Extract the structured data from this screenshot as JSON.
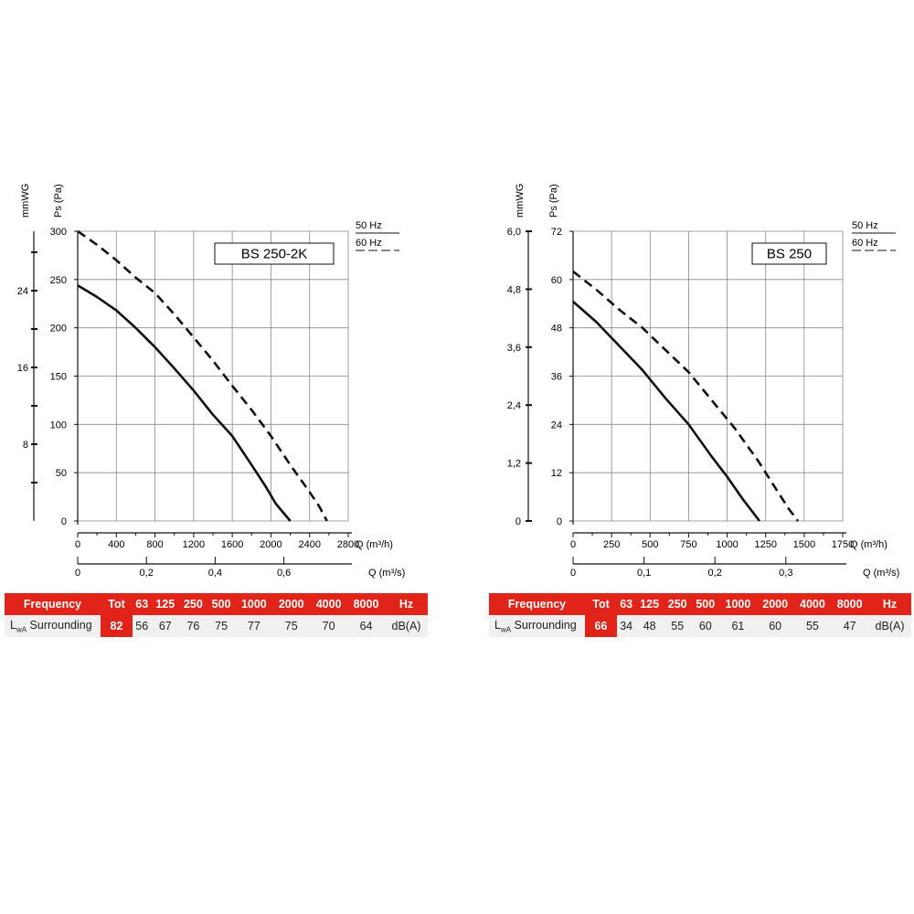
{
  "chart_data": [
    {
      "type": "line",
      "title": "BS 250-2K",
      "ylabel_primary": "Ps (Pa)",
      "ylabel_secondary": "mmWG",
      "xlabel_primary": "Q (m³/h)",
      "xlabel_secondary": "Q (m³/s)",
      "xlim": [
        0,
        2800
      ],
      "ylim": [
        0,
        300
      ],
      "x_ticks": [
        0,
        400,
        800,
        1200,
        1600,
        2000,
        2400,
        2800
      ],
      "y_ticks": [
        0,
        50,
        100,
        150,
        200,
        250,
        300
      ],
      "y2_ticks": [
        "8",
        "16",
        "24"
      ],
      "y2_values": [
        8,
        16,
        24
      ],
      "x2_ticks": [
        "0",
        "0,2",
        "0,4",
        "0,6"
      ],
      "x2_values": [
        0,
        0.2,
        0.4,
        0.6
      ],
      "grid": true,
      "legend_placement": "top-right",
      "series": [
        {
          "name": "50 Hz",
          "style": "solid",
          "x": [
            0,
            200,
            400,
            600,
            800,
            1000,
            1200,
            1400,
            1600,
            1800,
            1950,
            2050,
            2200
          ],
          "y": [
            244,
            232,
            218,
            200,
            180,
            158,
            135,
            110,
            88,
            58,
            35,
            18,
            0
          ]
        },
        {
          "name": "60 Hz",
          "style": "dashed",
          "x": [
            0,
            200,
            400,
            600,
            800,
            1000,
            1200,
            1400,
            1600,
            1800,
            2000,
            2200,
            2400,
            2500,
            2580
          ],
          "y": [
            300,
            286,
            270,
            252,
            236,
            214,
            190,
            166,
            140,
            115,
            88,
            58,
            30,
            15,
            0
          ]
        }
      ]
    },
    {
      "type": "line",
      "title": "BS 250",
      "ylabel_primary": "Ps (Pa)",
      "ylabel_secondary": "mmWG",
      "xlabel_primary": "Q (m³/h)",
      "xlabel_secondary": "Q (m³/s)",
      "xlim": [
        0,
        1750
      ],
      "ylim": [
        0,
        72
      ],
      "x_ticks": [
        0,
        250,
        500,
        750,
        1000,
        1250,
        1500,
        1750
      ],
      "y_ticks": [
        0,
        12,
        24,
        36,
        48,
        60,
        72
      ],
      "y2_ticks": [
        "0",
        "1,2",
        "2,4",
        "3,6",
        "4,8",
        "6,0"
      ],
      "y2_values": [
        0,
        1.2,
        2.4,
        3.6,
        4.8,
        6.0
      ],
      "x2_ticks": [
        "0",
        "0,1",
        "0,2",
        "0,3"
      ],
      "x2_values": [
        0,
        0.1,
        0.2,
        0.3
      ],
      "grid": true,
      "legend_placement": "top-right",
      "series": [
        {
          "name": "50 Hz",
          "style": "solid",
          "x": [
            0,
            150,
            300,
            450,
            600,
            750,
            900,
            1000,
            1100,
            1210
          ],
          "y": [
            54.5,
            49.5,
            43.5,
            37.5,
            30.5,
            24,
            16,
            11,
            5.5,
            0
          ]
        },
        {
          "name": "60 Hz",
          "style": "dashed",
          "x": [
            0,
            150,
            300,
            450,
            600,
            750,
            900,
            1050,
            1200,
            1300,
            1400,
            1460
          ],
          "y": [
            62,
            57.5,
            52.5,
            48,
            42.5,
            37,
            30,
            23,
            15,
            9,
            3,
            0
          ]
        }
      ]
    }
  ],
  "tables": [
    {
      "header": [
        "Frequency",
        "Tot",
        "63",
        "125",
        "250",
        "500",
        "1000",
        "2000",
        "4000",
        "8000",
        "Hz"
      ],
      "row_label_main": "L",
      "row_label_sub": "wA",
      "row_label_rest": " Surrounding",
      "values": [
        "82",
        "56",
        "67",
        "76",
        "75",
        "77",
        "75",
        "70",
        "64",
        "dB(A)"
      ]
    },
    {
      "header": [
        "Frequency",
        "Tot",
        "63",
        "125",
        "250",
        "500",
        "1000",
        "2000",
        "4000",
        "8000",
        "Hz"
      ],
      "row_label_main": "L",
      "row_label_sub": "wA",
      "row_label_rest": " Surrounding",
      "values": [
        "66",
        "34",
        "48",
        "55",
        "60",
        "61",
        "60",
        "55",
        "47",
        "dB(A)"
      ]
    }
  ],
  "colors": {
    "accent": "#e2231a",
    "grid": "#888888",
    "curve": "#111111",
    "row_bg": "#f0f0f0"
  }
}
